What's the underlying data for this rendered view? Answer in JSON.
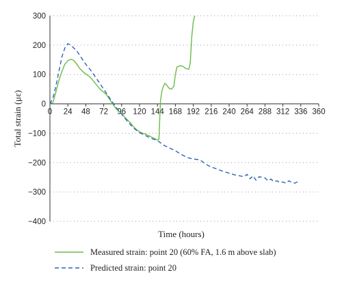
{
  "chart_data": {
    "type": "line",
    "xlabel": "Time (hours)",
    "ylabel": "Total strain (με)",
    "xlim": [
      0,
      360
    ],
    "ylim": [
      -400,
      300
    ],
    "x_ticks": [
      0,
      24,
      48,
      72,
      96,
      120,
      144,
      168,
      192,
      216,
      240,
      264,
      288,
      312,
      336,
      360
    ],
    "y_ticks": [
      300,
      200,
      100,
      0,
      -100,
      -200,
      -300,
      -400
    ],
    "grid": "horizontal dotted",
    "legend_position": "bottom",
    "series": [
      {
        "name": "Measured strain: point 20 (60% FA, 1.6 m above slab)",
        "color": "#6aba4a",
        "dash": "solid",
        "points": [
          [
            0,
            0
          ],
          [
            4,
            5
          ],
          [
            8,
            40
          ],
          [
            12,
            80
          ],
          [
            16,
            110
          ],
          [
            20,
            135
          ],
          [
            24,
            147
          ],
          [
            28,
            152
          ],
          [
            32,
            148
          ],
          [
            36,
            135
          ],
          [
            40,
            120
          ],
          [
            44,
            110
          ],
          [
            48,
            102
          ],
          [
            52,
            95
          ],
          [
            56,
            85
          ],
          [
            60,
            72
          ],
          [
            64,
            60
          ],
          [
            68,
            48
          ],
          [
            72,
            40
          ],
          [
            76,
            30
          ],
          [
            80,
            15
          ],
          [
            84,
            0
          ],
          [
            88,
            -15
          ],
          [
            92,
            -25
          ],
          [
            96,
            -33
          ],
          [
            100,
            -45
          ],
          [
            104,
            -55
          ],
          [
            108,
            -65
          ],
          [
            112,
            -78
          ],
          [
            116,
            -88
          ],
          [
            120,
            -95
          ],
          [
            124,
            -100
          ],
          [
            128,
            -103
          ],
          [
            132,
            -108
          ],
          [
            136,
            -113
          ],
          [
            140,
            -118
          ],
          [
            144,
            -123
          ],
          [
            146,
            -120
          ],
          [
            148,
            10
          ],
          [
            150,
            45
          ],
          [
            152,
            60
          ],
          [
            154,
            70
          ],
          [
            156,
            65
          ],
          [
            160,
            52
          ],
          [
            163,
            50
          ],
          [
            166,
            60
          ],
          [
            168,
            100
          ],
          [
            170,
            125
          ],
          [
            174,
            130
          ],
          [
            178,
            128
          ],
          [
            182,
            120
          ],
          [
            186,
            118
          ],
          [
            188,
            140
          ],
          [
            190,
            230
          ],
          [
            192,
            280
          ],
          [
            194,
            300
          ]
        ]
      },
      {
        "name": "Predicted strain: point 20",
        "color": "#2f62b8",
        "dash": "dashed",
        "points": [
          [
            0,
            0
          ],
          [
            4,
            20
          ],
          [
            8,
            60
          ],
          [
            12,
            110
          ],
          [
            16,
            160
          ],
          [
            20,
            190
          ],
          [
            24,
            205
          ],
          [
            28,
            200
          ],
          [
            32,
            190
          ],
          [
            36,
            180
          ],
          [
            40,
            165
          ],
          [
            44,
            150
          ],
          [
            48,
            135
          ],
          [
            56,
            110
          ],
          [
            64,
            80
          ],
          [
            72,
            50
          ],
          [
            80,
            20
          ],
          [
            88,
            -10
          ],
          [
            96,
            -35
          ],
          [
            104,
            -60
          ],
          [
            112,
            -82
          ],
          [
            120,
            -98
          ],
          [
            128,
            -108
          ],
          [
            136,
            -118
          ],
          [
            144,
            -125
          ],
          [
            152,
            -140
          ],
          [
            160,
            -150
          ],
          [
            168,
            -160
          ],
          [
            176,
            -172
          ],
          [
            184,
            -183
          ],
          [
            192,
            -188
          ],
          [
            200,
            -190
          ],
          [
            204,
            -196
          ],
          [
            208,
            -205
          ],
          [
            216,
            -215
          ],
          [
            224,
            -222
          ],
          [
            232,
            -230
          ],
          [
            240,
            -236
          ],
          [
            248,
            -242
          ],
          [
            256,
            -246
          ],
          [
            260,
            -248
          ],
          [
            264,
            -240
          ],
          [
            268,
            -255
          ],
          [
            272,
            -245
          ],
          [
            276,
            -260
          ],
          [
            280,
            -248
          ],
          [
            284,
            -250
          ],
          [
            288,
            -252
          ],
          [
            292,
            -262
          ],
          [
            296,
            -256
          ],
          [
            300,
            -265
          ],
          [
            304,
            -262
          ],
          [
            308,
            -268
          ],
          [
            312,
            -266
          ],
          [
            316,
            -270
          ],
          [
            320,
            -262
          ],
          [
            324,
            -268
          ],
          [
            328,
            -270
          ],
          [
            332,
            -265
          ]
        ]
      }
    ]
  }
}
